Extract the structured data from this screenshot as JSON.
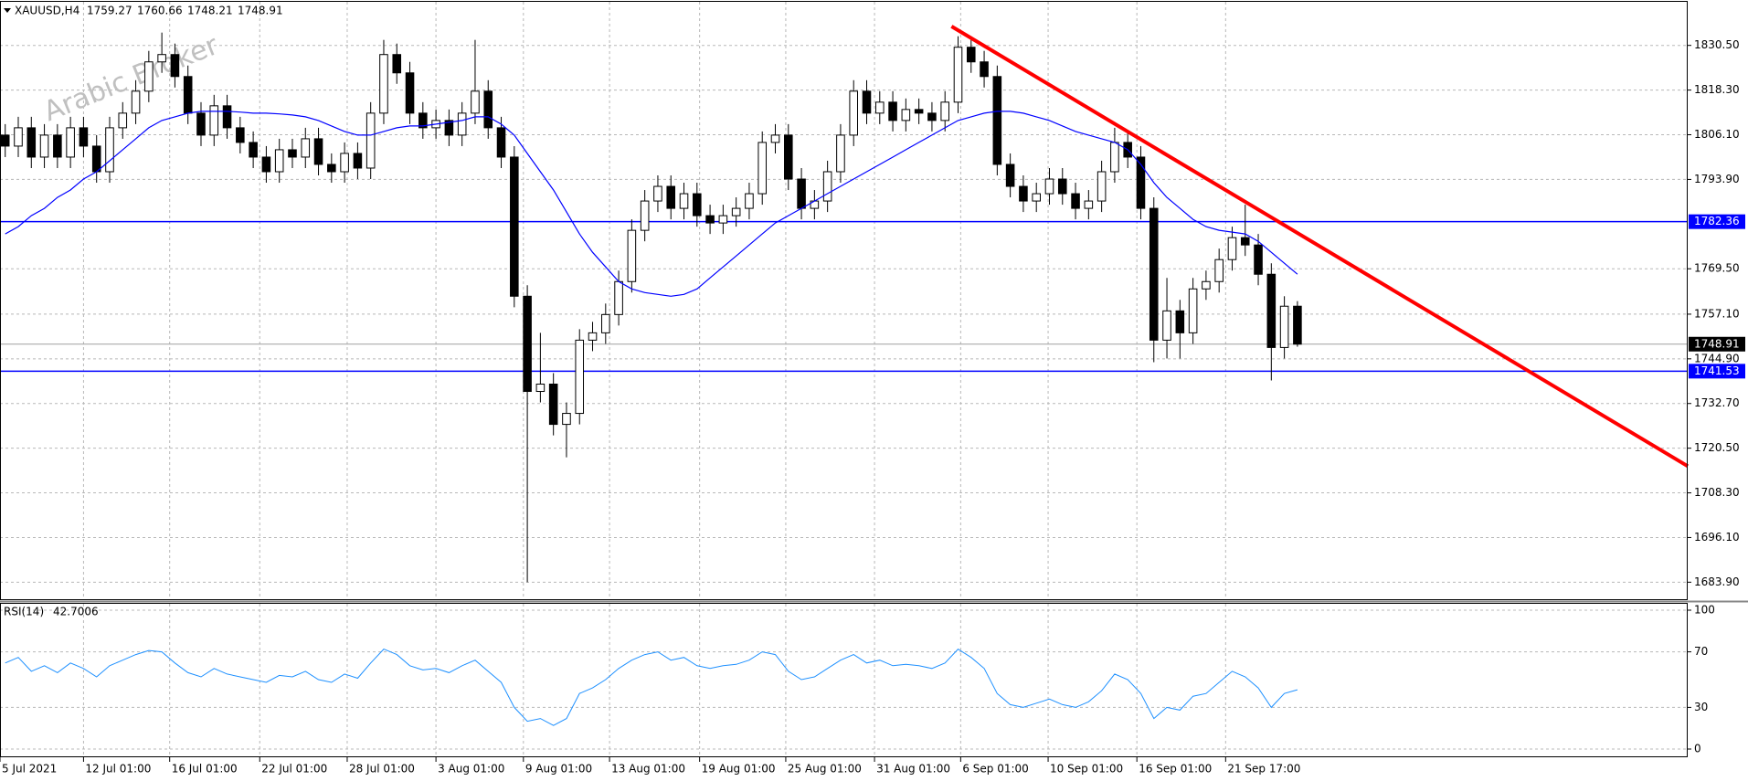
{
  "chart_data": {
    "type": "candlestick",
    "title": "XAUUSD,H4",
    "watermark": "Arabic Broker",
    "xlim": [
      -0.4,
      128.9
    ],
    "ylim": [
      1679,
      1842.4
    ],
    "xticks": [
      {
        "value": -0.4,
        "label": "5 Jul 2021"
      },
      {
        "value": 6.0,
        "label": "12 Jul 01:00"
      },
      {
        "value": 12.6,
        "label": "16 Jul 01:00"
      },
      {
        "value": 19.5,
        "label": "22 Jul 01:00"
      },
      {
        "value": 26.2,
        "label": "28 Jul 01:00"
      },
      {
        "value": 33.0,
        "label": "3 Aug 01:00"
      },
      {
        "value": 39.7,
        "label": "9 Aug 01:00"
      },
      {
        "value": 46.3,
        "label": "13 Aug 01:00"
      },
      {
        "value": 53.2,
        "label": "19 Aug 01:00"
      },
      {
        "value": 59.8,
        "label": "25 Aug 01:00"
      },
      {
        "value": 66.6,
        "label": "31 Aug 01:00"
      },
      {
        "value": 73.2,
        "label": "6 Sep 01:00"
      },
      {
        "value": 79.9,
        "label": "10 Sep 01:00"
      },
      {
        "value": 86.7,
        "label": "16 Sep 01:00"
      },
      {
        "value": 93.5,
        "label": "21 Sep 17:00"
      }
    ],
    "yticks": [
      {
        "value": 1830.5,
        "label": "1830.50"
      },
      {
        "value": 1818.3,
        "label": "1818.30"
      },
      {
        "value": 1806.1,
        "label": "1806.10"
      },
      {
        "value": 1793.9,
        "label": "1793.90"
      },
      {
        "value": 1769.5,
        "label": "1769.50"
      },
      {
        "value": 1757.1,
        "label": "1757.10"
      },
      {
        "value": 1744.9,
        "label": "1744.90"
      },
      {
        "value": 1732.7,
        "label": "1732.70"
      },
      {
        "value": 1720.5,
        "label": "1720.50"
      },
      {
        "value": 1708.3,
        "label": "1708.30"
      },
      {
        "value": 1696.1,
        "label": "1696.10"
      },
      {
        "value": 1683.9,
        "label": "1683.90"
      }
    ],
    "grid": true,
    "up_color": "#ffffff",
    "down_color": "#000000",
    "edge_color": "#000000",
    "open": [
      1806,
      1803,
      1808,
      1800,
      1806,
      1800,
      1808,
      1803,
      1796,
      1808,
      1812,
      1818,
      1826,
      1828,
      1822,
      1812,
      1806,
      1814,
      1808,
      1804,
      1800,
      1796,
      1802,
      1800,
      1805,
      1798,
      1796,
      1801,
      1797,
      1812,
      1828,
      1823,
      1812,
      1808,
      1810,
      1806,
      1812,
      1818,
      1808,
      1800,
      1762,
      1736,
      1738,
      1727,
      1730,
      1750,
      1752,
      1757,
      1766,
      1780,
      1788,
      1792,
      1786,
      1790,
      1784,
      1782,
      1784,
      1786,
      1790,
      1804,
      1806,
      1794,
      1786,
      1788,
      1796,
      1806,
      1818,
      1812,
      1815,
      1810,
      1813,
      1812,
      1810,
      1815,
      1830,
      1826,
      1822,
      1798,
      1792,
      1788,
      1790,
      1794,
      1790,
      1786,
      1788,
      1796,
      1804,
      1800,
      1786,
      1750,
      1758,
      1752,
      1764,
      1766,
      1772,
      1778,
      1776,
      1768,
      1748,
      1759.27
    ],
    "high": [
      1809,
      1811,
      1811,
      1809,
      1809,
      1811,
      1811,
      1806,
      1811,
      1815,
      1821,
      1829,
      1834,
      1831,
      1825,
      1815,
      1817,
      1817,
      1811,
      1807,
      1803,
      1805,
      1805,
      1808,
      1808,
      1801,
      1804,
      1804,
      1815,
      1832,
      1831,
      1826,
      1815,
      1813,
      1813,
      1815,
      1832,
      1821,
      1811,
      1803,
      1765,
      1752,
      1741,
      1733,
      1753,
      1755,
      1760,
      1769,
      1783,
      1791,
      1795,
      1795,
      1793,
      1793,
      1787,
      1787,
      1789,
      1793,
      1807,
      1809,
      1809,
      1797,
      1791,
      1799,
      1809,
      1821,
      1821,
      1818,
      1818,
      1816,
      1816,
      1815,
      1818,
      1833,
      1833,
      1829,
      1825,
      1801,
      1795,
      1793,
      1797,
      1797,
      1793,
      1791,
      1799,
      1808,
      1807,
      1803,
      1789,
      1767,
      1761,
      1767,
      1769,
      1775,
      1781,
      1787,
      1779,
      1771,
      1762,
      1760.66
    ],
    "low": [
      1800,
      1800,
      1797,
      1797,
      1797,
      1797,
      1800,
      1793,
      1793,
      1805,
      1809,
      1815,
      1823,
      1819,
      1809,
      1803,
      1803,
      1805,
      1801,
      1797,
      1793,
      1793,
      1797,
      1797,
      1795,
      1793,
      1793,
      1794,
      1794,
      1809,
      1820,
      1809,
      1805,
      1805,
      1803,
      1803,
      1809,
      1805,
      1797,
      1759,
      1683.9,
      1733,
      1724,
      1718,
      1727,
      1747,
      1749,
      1754,
      1763,
      1777,
      1785,
      1783,
      1783,
      1781,
      1779,
      1779,
      1781,
      1783,
      1787,
      1801,
      1791,
      1783,
      1783,
      1785,
      1793,
      1803,
      1809,
      1809,
      1807,
      1807,
      1809,
      1807,
      1807,
      1812,
      1823,
      1819,
      1795,
      1789,
      1785,
      1785,
      1787,
      1787,
      1783,
      1783,
      1785,
      1793,
      1797,
      1783,
      1744,
      1745,
      1745,
      1749,
      1761,
      1763,
      1769,
      1773,
      1765,
      1739,
      1745,
      1748.21
    ],
    "close": [
      1803,
      1808,
      1800,
      1806,
      1800,
      1808,
      1803,
      1796,
      1808,
      1812,
      1818,
      1826,
      1828,
      1822,
      1812,
      1806,
      1814,
      1808,
      1804,
      1800,
      1796,
      1802,
      1800,
      1805,
      1798,
      1796,
      1801,
      1797,
      1812,
      1828,
      1823,
      1812,
      1808,
      1810,
      1806,
      1812,
      1818,
      1808,
      1800,
      1762,
      1736,
      1738,
      1727,
      1730,
      1750,
      1752,
      1757,
      1766,
      1780,
      1788,
      1792,
      1786,
      1790,
      1784,
      1782,
      1784,
      1786,
      1790,
      1804,
      1806,
      1794,
      1786,
      1788,
      1796,
      1806,
      1818,
      1812,
      1815,
      1810,
      1813,
      1812,
      1810,
      1815,
      1830,
      1826,
      1822,
      1798,
      1792,
      1788,
      1790,
      1794,
      1790,
      1786,
      1788,
      1796,
      1804,
      1800,
      1786,
      1750,
      1758,
      1752,
      1764,
      1766,
      1772,
      1778,
      1776,
      1768,
      1748,
      1759.27,
      1748.91
    ],
    "ma": {
      "color": "#0000ff",
      "values": [
        1779,
        1781,
        1784,
        1786,
        1789,
        1791,
        1794,
        1796,
        1799,
        1802,
        1805,
        1808,
        1810,
        1811,
        1812,
        1812.5,
        1812.5,
        1812.5,
        1812.3,
        1812,
        1812,
        1811.8,
        1811.5,
        1811,
        1810,
        1808.5,
        1807,
        1806,
        1806,
        1807,
        1808,
        1808.5,
        1808.5,
        1809,
        1809.5,
        1810,
        1811,
        1811,
        1809,
        1806,
        1801,
        1796,
        1791,
        1785,
        1779,
        1774,
        1770,
        1766,
        1764,
        1763,
        1762.5,
        1762,
        1762.5,
        1764,
        1767,
        1770,
        1773,
        1776,
        1779,
        1782,
        1784,
        1786,
        1788,
        1790,
        1792,
        1794,
        1796,
        1798,
        1800,
        1802,
        1804,
        1806,
        1808,
        1810,
        1811,
        1812,
        1812.5,
        1812.5,
        1812,
        1811,
        1810,
        1808.5,
        1807,
        1806,
        1805,
        1804,
        1802,
        1798,
        1793,
        1789,
        1786,
        1783,
        1781,
        1780,
        1779.5,
        1779,
        1777,
        1774,
        1771,
        1768
      ]
    },
    "hlines": [
      {
        "value": 1782.36,
        "color": "#0000ff"
      },
      {
        "value": 1741.53,
        "color": "#0000ff"
      }
    ],
    "trendline": {
      "x": [
        72.5,
        128.9
      ],
      "y": [
        1835.7,
        1715.6
      ],
      "color": "#ff0000"
    },
    "rsi": {
      "title": "RSI(14)",
      "color": "#1e90ff",
      "ylim": [
        0,
        100
      ],
      "yticks": [
        0,
        30,
        70,
        100
      ],
      "values": [
        62,
        66,
        56,
        60,
        55,
        62,
        58,
        52,
        60,
        64,
        68,
        71,
        70,
        62,
        55,
        52,
        58,
        54,
        52,
        50,
        48,
        53,
        52,
        56,
        50,
        48,
        54,
        51,
        62,
        72,
        68,
        60,
        57,
        58,
        55,
        60,
        64,
        56,
        48,
        30,
        20,
        22,
        17,
        22,
        40,
        44,
        50,
        58,
        64,
        68,
        70,
        64,
        66,
        60,
        58,
        60,
        61,
        64,
        70,
        68,
        56,
        50,
        52,
        58,
        64,
        68,
        62,
        64,
        60,
        61,
        60,
        58,
        62,
        72,
        66,
        58,
        40,
        32,
        30,
        33,
        36,
        32,
        30,
        34,
        42,
        54,
        50,
        40,
        22,
        30,
        28,
        38,
        40,
        48,
        56,
        52,
        44,
        30,
        40,
        42.7006
      ]
    }
  }
}
